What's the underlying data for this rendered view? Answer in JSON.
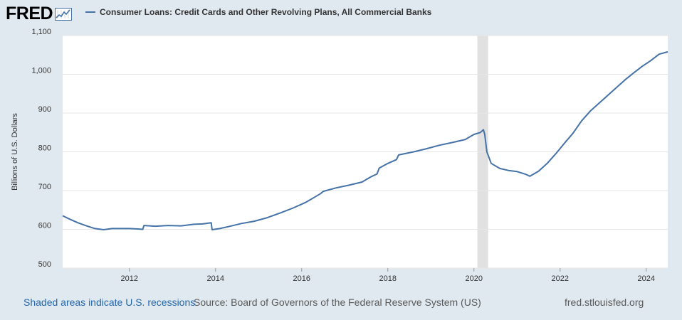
{
  "brand": {
    "logo_text": "FRED"
  },
  "header": {
    "series_title": "Consumer Loans: Credit Cards and Other Revolving Plans, All Commercial Banks"
  },
  "footer": {
    "recession_note": "Shaded areas indicate U.S. recessions",
    "source": "Source: Board of Governors of the Federal Reserve System (US)",
    "site": "fred.stlouisfed.org"
  },
  "colors": {
    "series": "#4572a7",
    "recession": "#e1e1e1",
    "background": "#e1e9f0",
    "plot": "#ffffff",
    "link": "#2266aa"
  },
  "chart_data": {
    "type": "line",
    "title": "Consumer Loans: Credit Cards and Other Revolving Plans, All Commercial Banks",
    "xlabel": "",
    "ylabel": "Billions of U.S. Dollars",
    "xlim": [
      2010.45,
      2024.5
    ],
    "ylim": [
      500,
      1100
    ],
    "grid": true,
    "x_ticks": [
      2012,
      2014,
      2016,
      2018,
      2020,
      2022,
      2024
    ],
    "y_ticks": [
      500,
      600,
      700,
      800,
      900,
      1000,
      1100
    ],
    "y_tick_labels": [
      "500",
      "600",
      "700",
      "800",
      "900",
      "1,000",
      "1,100"
    ],
    "recessions": [
      [
        2020.08,
        2020.33
      ]
    ],
    "series": [
      {
        "name": "Consumer Loans: Credit Cards and Other Revolving Plans, All Commercial Banks",
        "x": [
          2010.45,
          2010.6,
          2010.8,
          2011.0,
          2011.2,
          2011.4,
          2011.6,
          2011.8,
          2012.0,
          2012.2,
          2012.31,
          2012.34,
          2012.6,
          2012.9,
          2013.2,
          2013.5,
          2013.7,
          2013.9,
          2013.92,
          2014.1,
          2014.3,
          2014.6,
          2014.9,
          2015.2,
          2015.5,
          2015.8,
          2016.1,
          2016.3,
          2016.45,
          2016.5,
          2016.8,
          2017.1,
          2017.4,
          2017.6,
          2017.75,
          2017.8,
          2018.0,
          2018.2,
          2018.25,
          2018.6,
          2018.9,
          2019.2,
          2019.5,
          2019.8,
          2020.0,
          2020.15,
          2020.22,
          2020.25,
          2020.3,
          2020.4,
          2020.6,
          2020.8,
          2021.0,
          2021.2,
          2021.3,
          2021.5,
          2021.7,
          2021.9,
          2022.1,
          2022.3,
          2022.5,
          2022.7,
          2022.9,
          2023.1,
          2023.3,
          2023.5,
          2023.7,
          2023.9,
          2024.1,
          2024.3,
          2024.5
        ],
        "values": [
          635,
          627,
          617,
          609,
          602,
          599,
          602,
          602,
          602,
          601,
          600,
          610,
          608,
          610,
          609,
          613,
          614,
          617,
          599,
          602,
          607,
          615,
          621,
          630,
          642,
          655,
          670,
          683,
          693,
          698,
          707,
          714,
          722,
          735,
          743,
          758,
          770,
          780,
          792,
          800,
          808,
          817,
          824,
          832,
          845,
          850,
          857,
          845,
          800,
          770,
          757,
          752,
          749,
          742,
          737,
          750,
          770,
          795,
          822,
          848,
          880,
          905,
          925,
          945,
          965,
          985,
          1003,
          1020,
          1035,
          1052,
          1058
        ]
      }
    ]
  }
}
